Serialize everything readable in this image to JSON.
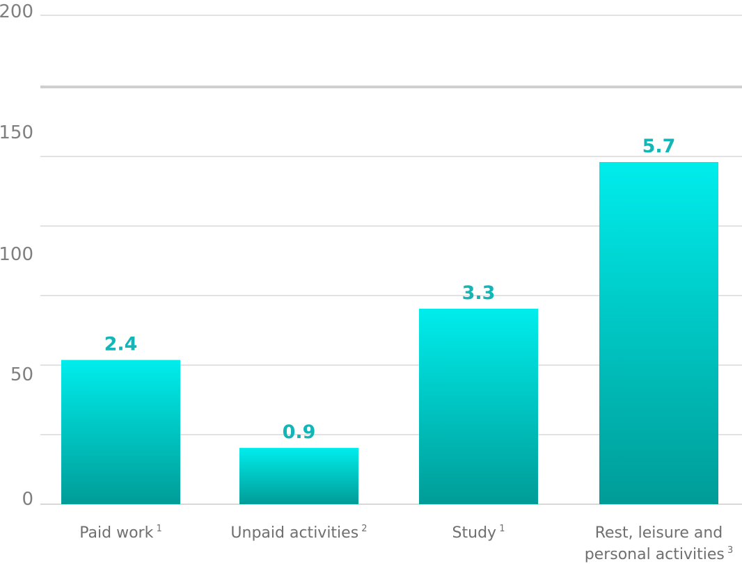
{
  "chart_data": {
    "type": "bar",
    "categories": [
      {
        "label": "Paid work",
        "note": "1"
      },
      {
        "label": "Unpaid activities",
        "note": "2"
      },
      {
        "label": "Study",
        "note": "1"
      },
      {
        "label": "Rest, leisure and personal activities",
        "note": "3"
      }
    ],
    "values": [
      60.5,
      23.6,
      82,
      143.5
    ],
    "data_labels": [
      "2.4",
      "0.9",
      "3.3",
      "5.7"
    ],
    "y_ticks": [
      0,
      50,
      100,
      150,
      200
    ],
    "ylim": [
      0,
      175
    ],
    "top_tick_value": 200,
    "grid": true,
    "legend": "none",
    "colors": {
      "bar_top": "#00EDEC",
      "bar_bottom": "#009C97",
      "label": "#13B5B7"
    }
  }
}
